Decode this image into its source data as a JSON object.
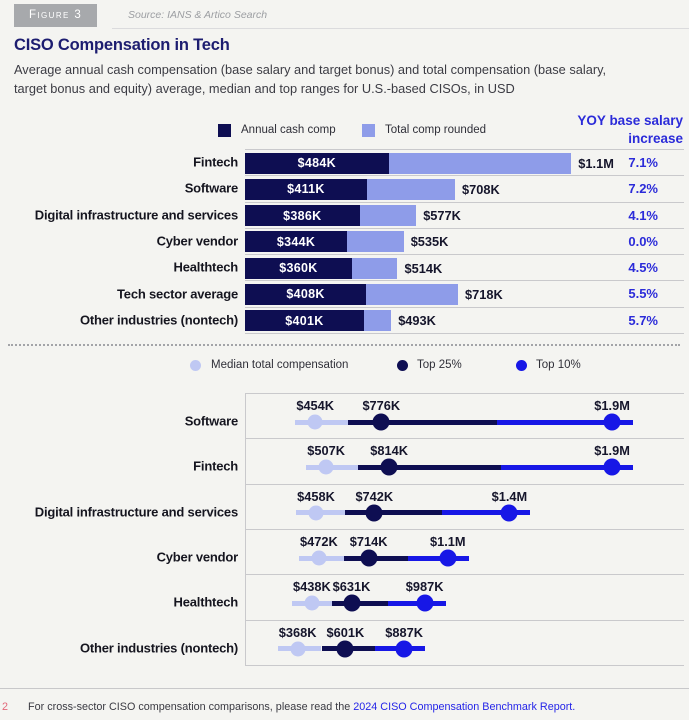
{
  "figure": {
    "label": "Figure 3",
    "source": "Source: IANS & Artico Search"
  },
  "title": "CISO Compensation in Tech",
  "subtitle": "Average annual cash compensation (base salary and target bonus) and total compensation (base salary,\ntarget bonus and equity) average, median and top ranges for U.S.-based CISOs, in USD",
  "colors": {
    "navy": "#0E0E52",
    "periwinkle": "#8E9CE9",
    "light_periwinkle": "#BFC8F3",
    "blue": "#1717E6",
    "text_blue": "#2B2BD9",
    "badge_gray": "#A7A9AC",
    "footnote_marker_pink": "#E2687A"
  },
  "chart_data": [
    {
      "type": "bar",
      "orientation": "horizontal",
      "legend": [
        "Annual cash comp",
        "Total comp rounded"
      ],
      "yoy_header": "YOY base salary\nincrease",
      "categories": [
        "Fintech",
        "Software",
        "Digital infrastructure and services",
        "Cyber vendor",
        "Healthtech",
        "Tech sector average",
        "Other industries (nontech)"
      ],
      "series": [
        {
          "name": "Annual cash comp",
          "values_k_usd": [
            484,
            411,
            386,
            344,
            360,
            408,
            401
          ],
          "labels": [
            "$484K",
            "$411K",
            "$386K",
            "$344K",
            "$360K",
            "$408K",
            "$401K"
          ]
        },
        {
          "name": "Total comp rounded",
          "values_k_usd": [
            1100,
            708,
            577,
            535,
            514,
            718,
            493
          ],
          "labels": [
            "$1.1M",
            "$708K",
            "$577K",
            "$535K",
            "$514K",
            "$718K",
            "$493K"
          ]
        }
      ],
      "yoy_values": [
        "7.1%",
        "7.2%",
        "4.1%",
        "0.0%",
        "4.5%",
        "5.5%",
        "5.7%"
      ],
      "xlim_k_usd": [
        0,
        1480
      ],
      "grid": "row-separators"
    },
    {
      "type": "scatter",
      "subtype": "dot-range",
      "legend": [
        "Median total compensation",
        "Top 25%",
        "Top 10%"
      ],
      "categories": [
        "Software",
        "Fintech",
        "Digital infrastructure and services",
        "Cyber vendor",
        "Healthtech",
        "Other industries (nontech)"
      ],
      "series": [
        {
          "name": "Median total compensation",
          "values_k_usd": [
            454,
            507,
            458,
            472,
            438,
            368
          ],
          "labels": [
            "$454K",
            "$507K",
            "$458K",
            "$472K",
            "$438K",
            "$368K"
          ]
        },
        {
          "name": "Top 25%",
          "values_k_usd": [
            776,
            814,
            742,
            714,
            631,
            601
          ],
          "labels": [
            "$776K",
            "$814K",
            "$742K",
            "$714K",
            "$631K",
            "$601K"
          ]
        },
        {
          "name": "Top 10%",
          "values_k_usd": [
            1900,
            1900,
            1400,
            1100,
            987,
            887
          ],
          "labels": [
            "$1.9M",
            "$1.9M",
            "$1.4M",
            "$1.1M",
            "$987K",
            "$887K"
          ]
        }
      ],
      "xlim_k_usd": [
        0,
        2100
      ],
      "grid": "row-separators"
    }
  ],
  "footnote": {
    "marker": "2",
    "text": "For cross-sector CISO compensation comparisons, please read the ",
    "link": "2024 CISO Compensation Benchmark Report."
  }
}
